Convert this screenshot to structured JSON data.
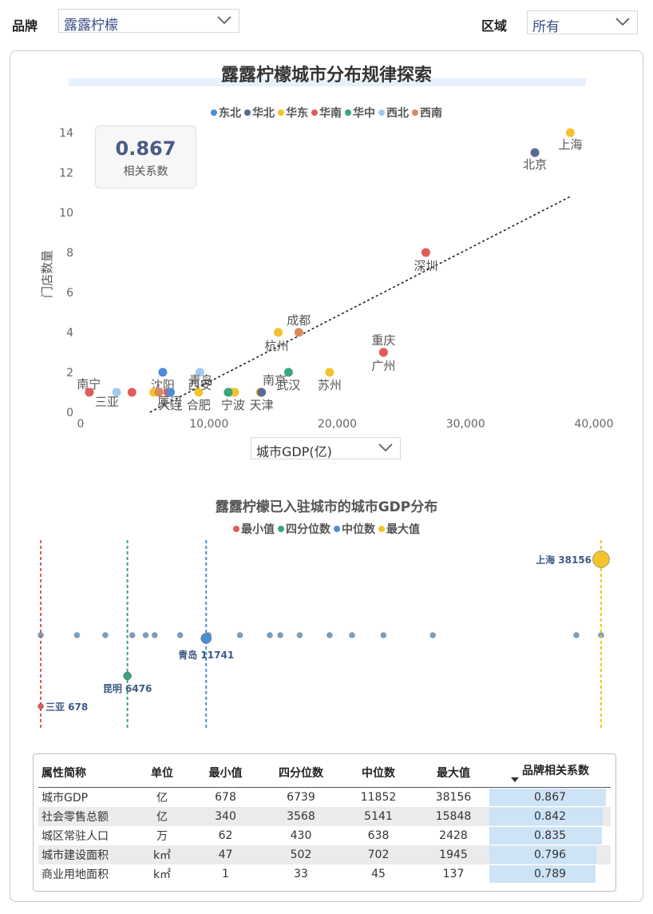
{
  "filters": {
    "brand_label": "品牌",
    "brand_value": "露露柠檬",
    "region_label": "区域",
    "region_value": "所有"
  },
  "scatter": {
    "title": "露露柠檬城市分布规律探索",
    "correlation_value": "0.867",
    "correlation_label": "相关系数",
    "x_axis_selector": "城市GDP(亿)"
  },
  "strip": {
    "title": "露露柠檬已入驻城市的城市GDP分布",
    "legend": [
      {
        "label": "最小值",
        "color": "#e05c5c"
      },
      {
        "label": "四分位数",
        "color": "#3aa57a"
      },
      {
        "label": "中位数",
        "color": "#4a8fd6"
      },
      {
        "label": "最大值",
        "color": "#f2c32c"
      }
    ]
  },
  "table": {
    "headers": [
      "属性简称",
      "单位",
      "最小值",
      "四分位数",
      "中位数",
      "最大值",
      "品牌相关系数"
    ],
    "rows": [
      {
        "name": "城市GDP",
        "unit": "亿",
        "min": "678",
        "q1": "6739",
        "median": "11852",
        "max": "38156",
        "corr": "0.867",
        "corr_value": 0.867
      },
      {
        "name": "社会零售总额",
        "unit": "亿",
        "min": "340",
        "q1": "3568",
        "median": "5141",
        "max": "15848",
        "corr": "0.842",
        "corr_value": 0.842
      },
      {
        "name": "城区常驻人口",
        "unit": "万",
        "min": "62",
        "q1": "430",
        "median": "638",
        "max": "2428",
        "corr": "0.835",
        "corr_value": 0.835
      },
      {
        "name": "城市建设面积",
        "unit": "k㎡",
        "min": "47",
        "q1": "502",
        "median": "702",
        "max": "1945",
        "corr": "0.796",
        "corr_value": 0.796
      },
      {
        "name": "商业用地面积",
        "unit": "k㎡",
        "min": "1",
        "q1": "33",
        "median": "45",
        "max": "137",
        "corr": "0.789",
        "corr_value": 0.789
      }
    ]
  },
  "chart_data": [
    {
      "type": "scatter",
      "title": "露露柠檬城市分布规律探索",
      "xlabel": "城市GDP(亿)",
      "ylabel": "门店数量",
      "xlim": [
        0,
        40000
      ],
      "ylim": [
        0,
        14
      ],
      "xticks": [
        "0",
        "10,000",
        "20,000",
        "30,000",
        "40,000"
      ],
      "yticks": [
        "0",
        "2",
        "4",
        "6",
        "8",
        "10",
        "12",
        "14"
      ],
      "legend": [
        {
          "name": "东北",
          "color": "#4a8fd6"
        },
        {
          "name": "华北",
          "color": "#5a6a90"
        },
        {
          "name": "华东",
          "color": "#f2c32c"
        },
        {
          "name": "华南",
          "color": "#e05c5c"
        },
        {
          "name": "华中",
          "color": "#3aa57a"
        },
        {
          "name": "西北",
          "color": "#9fcaf0"
        },
        {
          "name": "西南",
          "color": "#d98a5e"
        }
      ],
      "points": [
        {
          "label": "上海",
          "x": 38156,
          "y": 14,
          "region": "华东"
        },
        {
          "label": "北京",
          "x": 35400,
          "y": 13,
          "region": "华北"
        },
        {
          "label": "深圳",
          "x": 26900,
          "y": 8,
          "region": "华南"
        },
        {
          "label": "成都",
          "x": 17000,
          "y": 4,
          "region": "西南"
        },
        {
          "label": "杭州",
          "x": 15400,
          "y": 4,
          "region": "华东"
        },
        {
          "label": "重庆",
          "x": 23600,
          "y": 3,
          "region": "西南"
        },
        {
          "label": "广州",
          "x": 23600,
          "y": 3,
          "region": "华南"
        },
        {
          "label": "武汉",
          "x": 16200,
          "y": 2,
          "region": "华中"
        },
        {
          "label": "苏州",
          "x": 19400,
          "y": 2,
          "region": "华东"
        },
        {
          "label": "沈阳",
          "x": 6400,
          "y": 2,
          "region": "东北"
        },
        {
          "label": "西安",
          "x": 9300,
          "y": 2,
          "region": "西北"
        },
        {
          "label": "南宁",
          "x": 4000,
          "y": 1,
          "region": "华南"
        },
        {
          "label": "三亚",
          "x": 678,
          "y": 1,
          "region": "华南"
        },
        {
          "label": "厦门",
          "x": 6800,
          "y": 1,
          "region": "华南"
        },
        {
          "label": "大连",
          "x": 7000,
          "y": 1,
          "region": "东北"
        },
        {
          "label": "合肥",
          "x": 9200,
          "y": 1,
          "region": "华东"
        },
        {
          "label": "青岛",
          "x": 11741,
          "y": 1,
          "region": "华东"
        },
        {
          "label": "宁波",
          "x": 12000,
          "y": 1,
          "region": "华东"
        },
        {
          "label": "南京",
          "x": 14000,
          "y": 1,
          "region": "华东"
        },
        {
          "label": "天津",
          "x": 14100,
          "y": 1,
          "region": "华北"
        },
        {
          "label": "",
          "x": 2800,
          "y": 1,
          "region": "西北"
        },
        {
          "label": "",
          "x": 5700,
          "y": 1,
          "region": "华东"
        },
        {
          "label": "",
          "x": 6100,
          "y": 1,
          "region": "西南"
        },
        {
          "label": "",
          "x": 11500,
          "y": 1,
          "region": "华中"
        }
      ],
      "trendline": {
        "x": [
          5400,
          38156
        ],
        "y": [
          0,
          10.8
        ]
      }
    },
    {
      "type": "scatter",
      "title": "露露柠檬已入驻城市的城市GDP分布",
      "xlim": [
        678,
        38156
      ],
      "values": [
        678,
        3100,
        5000,
        6800,
        7700,
        8300,
        10000,
        11900,
        14000,
        16000,
        16700,
        18000,
        20000,
        21500,
        23600,
        26900,
        36500,
        38156
      ],
      "markers": [
        {
          "name": "最小值",
          "label": "三亚 678",
          "x": 678,
          "color": "#e05c5c"
        },
        {
          "name": "四分位数",
          "label": "昆明 6476",
          "x": 6476,
          "color": "#3aa57a"
        },
        {
          "name": "中位数",
          "label": "青岛 11741",
          "x": 11741,
          "color": "#4a8fd6"
        },
        {
          "name": "最大值",
          "label": "上海 38156",
          "x": 38156,
          "color": "#f2c32c"
        }
      ]
    }
  ]
}
